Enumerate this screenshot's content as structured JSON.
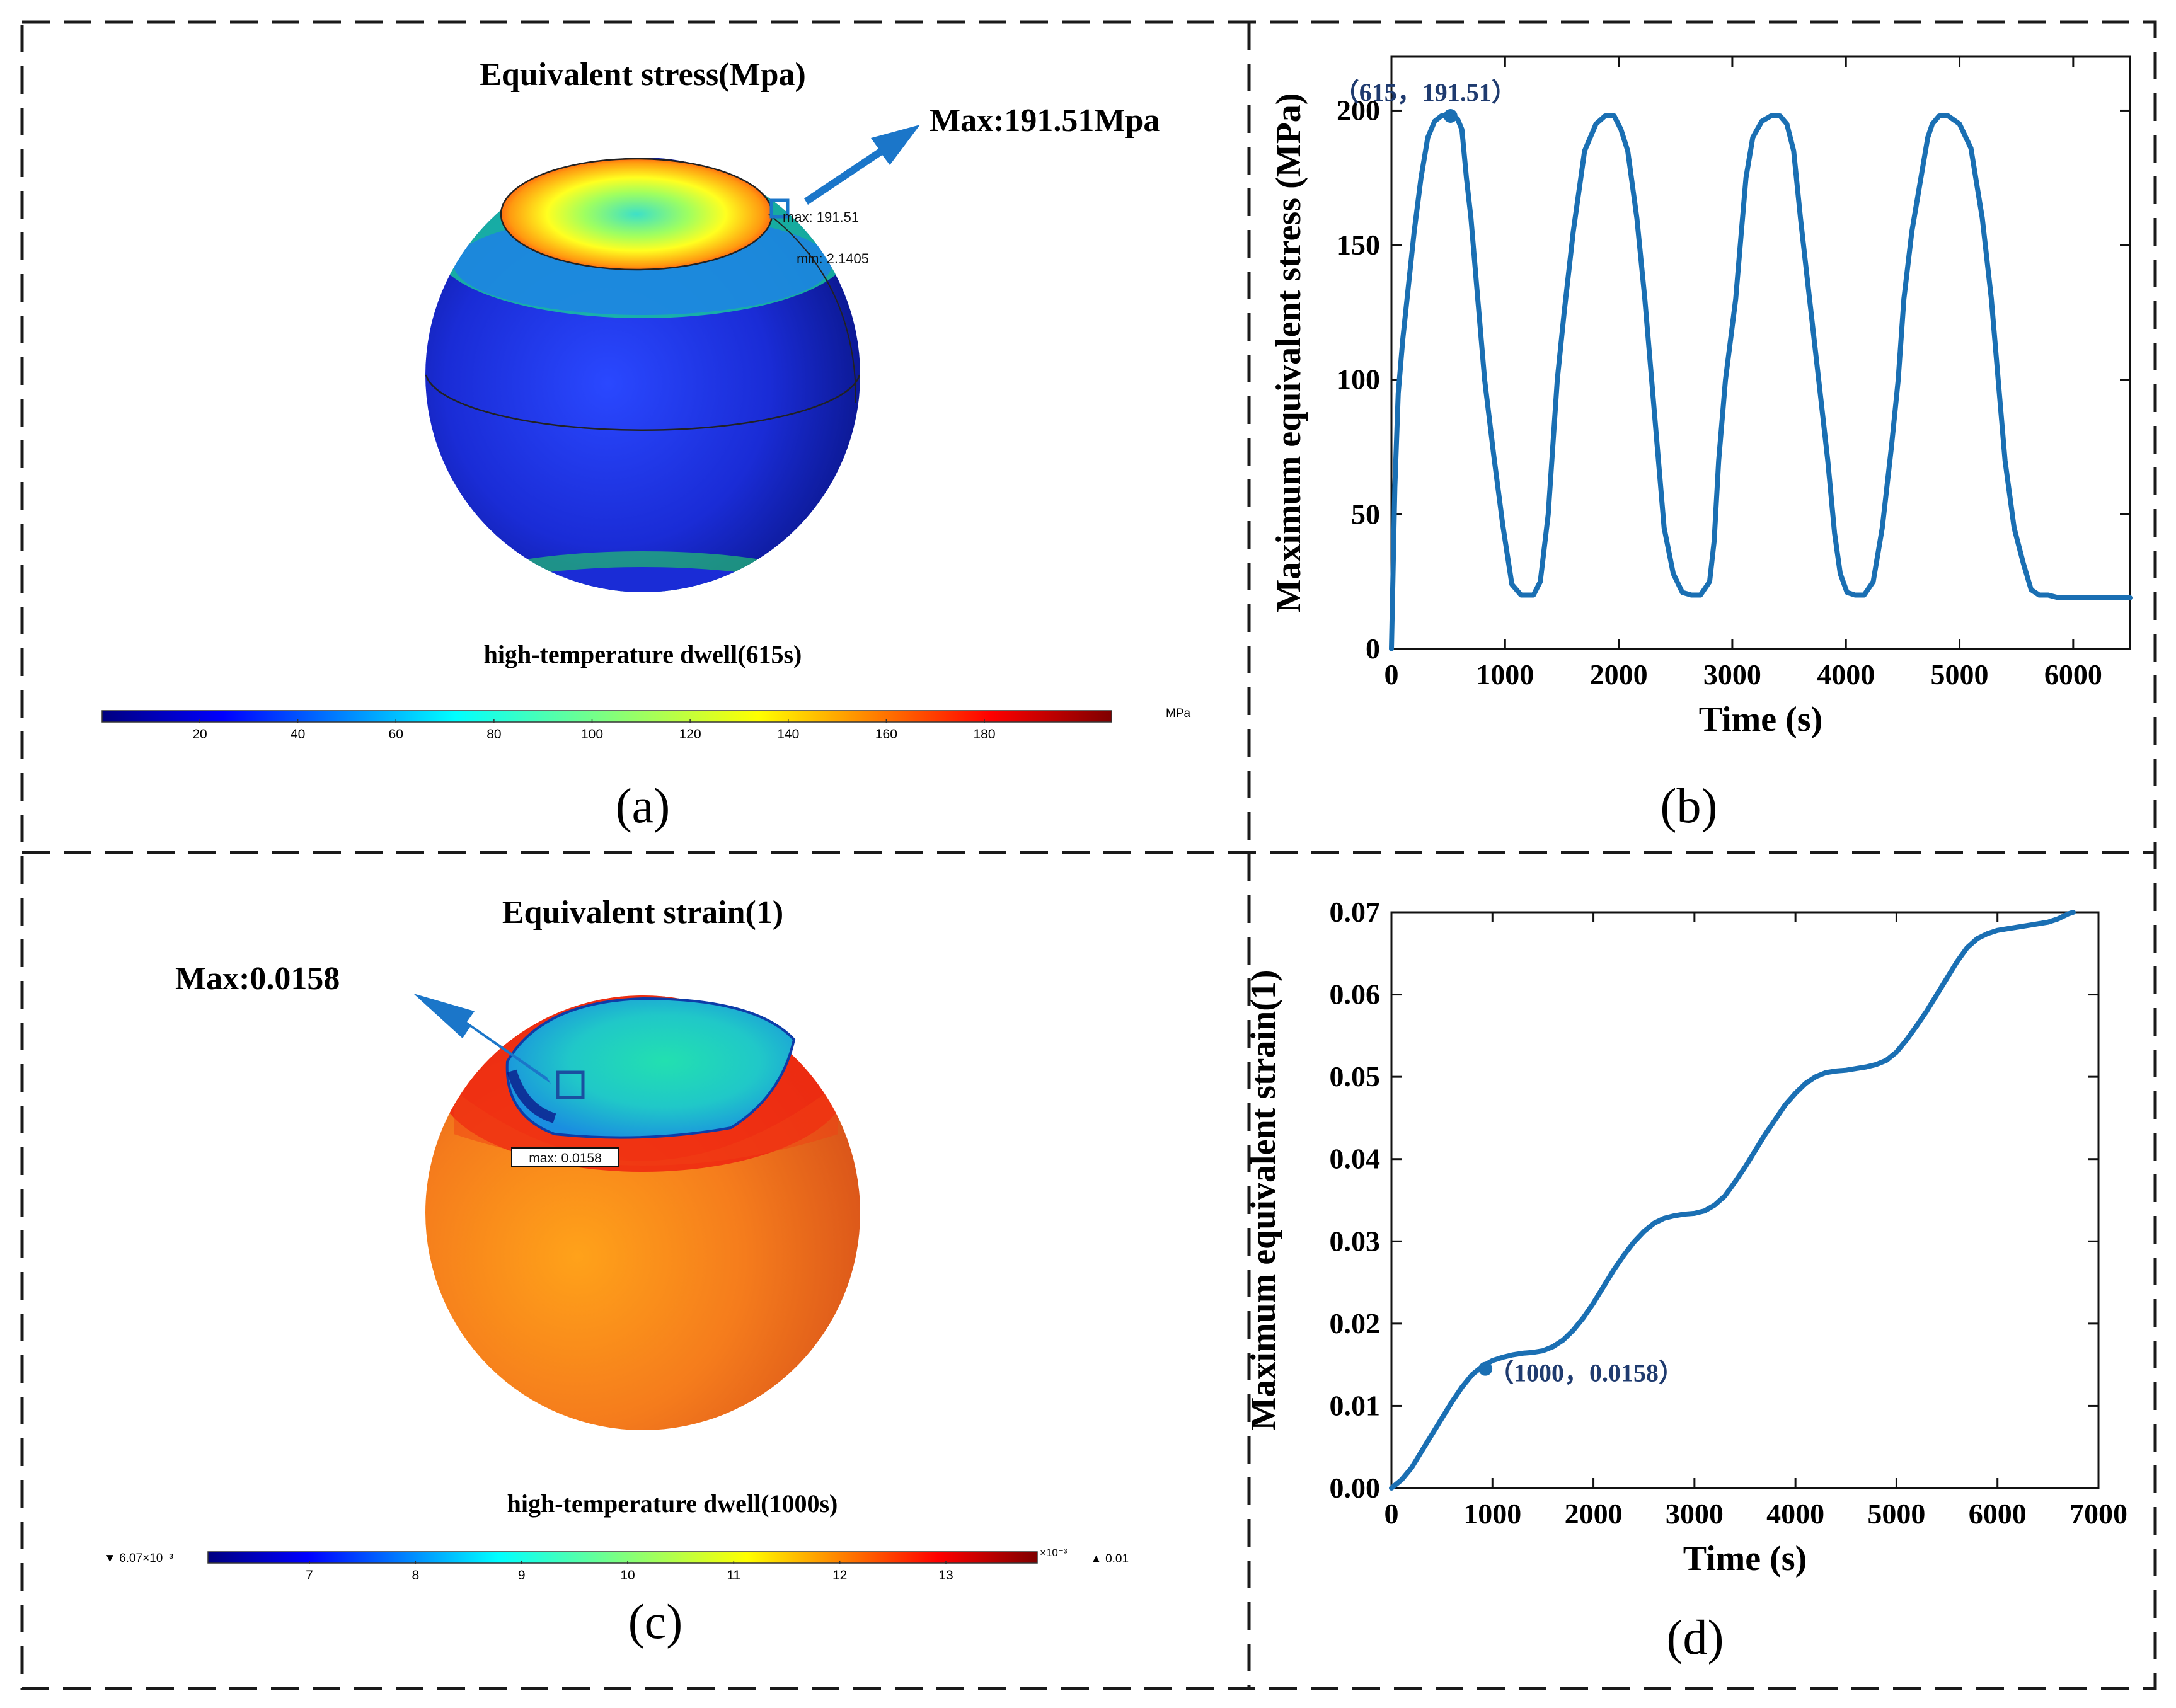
{
  "colors": {
    "line": "#1a6fb3",
    "annot": "#1f3b6f",
    "arrow": "#1b76c9",
    "sphere_blue": "#1c2fd8",
    "sphere_orange": "#f2751a"
  },
  "panel_a": {
    "title": "Equivalent stress(Mpa)",
    "max_callout": "Max:191.51Mpa",
    "max_tag": "max: 191.51",
    "min_tag": "min: 2.1405",
    "subtitle": "high-temperature dwell(615s)",
    "unit": "MPa",
    "colorbar_ticks": [
      "20",
      "40",
      "60",
      "80",
      "100",
      "120",
      "140",
      "160",
      "180"
    ],
    "label": "(a)"
  },
  "panel_c": {
    "title": "Equivalent strain(1)",
    "max_callout": "Max:0.0158",
    "max_tag": "max: 0.0158",
    "subtitle": "high-temperature dwell(1000s)",
    "colorbar_min": "▼ 6.07×10⁻³",
    "colorbar_scale": "×10⁻³",
    "colorbar_max": "▲ 0.01",
    "colorbar_ticks": [
      "7",
      "8",
      "9",
      "10",
      "11",
      "12",
      "13"
    ],
    "label": "(c)"
  },
  "panel_b": {
    "label": "(b)"
  },
  "panel_d": {
    "label": "(d)"
  },
  "chart_data": [
    {
      "type": "line",
      "xlabel": "Time (s)",
      "ylabel": "Maximum equivalent stress (MPa)",
      "xlim": [
        0,
        6500
      ],
      "ylim": [
        0,
        220
      ],
      "xticks": [
        0,
        1000,
        2000,
        3000,
        4000,
        5000,
        6000
      ],
      "yticks": [
        0,
        50,
        100,
        150,
        200
      ],
      "annotation": {
        "x": 520,
        "y": 198,
        "text": "（615，191.51）"
      },
      "series": [
        {
          "name": "Maximum equivalent stress",
          "x": [
            0,
            30,
            60,
            100,
            150,
            200,
            260,
            320,
            380,
            440,
            520,
            580,
            620,
            660,
            700,
            760,
            820,
            900,
            980,
            1060,
            1140,
            1190,
            1250,
            1310,
            1380,
            1420,
            1460,
            1520,
            1600,
            1700,
            1800,
            1880,
            1960,
            2020,
            2080,
            2160,
            2230,
            2290,
            2340,
            2400,
            2480,
            2560,
            2640,
            2720,
            2800,
            2840,
            2880,
            2940,
            3030,
            3080,
            3120,
            3180,
            3260,
            3340,
            3420,
            3480,
            3540,
            3600,
            3680,
            3760,
            3840,
            3900,
            3950,
            4010,
            4080,
            4160,
            4240,
            4320,
            4400,
            4460,
            4510,
            4580,
            4660,
            4720,
            4760,
            4820,
            4900,
            5000,
            5100,
            5200,
            5280,
            5340,
            5400,
            5480,
            5560,
            5630,
            5700,
            5780,
            5870,
            5960,
            6040,
            6100,
            6150,
            6220,
            6300,
            6400,
            6500
          ],
          "y": [
            0,
            60,
            95,
            115,
            135,
            155,
            175,
            190,
            196,
            198,
            198,
            197,
            193,
            175,
            160,
            130,
            100,
            72,
            46,
            24,
            20,
            20,
            20,
            25,
            50,
            75,
            100,
            125,
            155,
            185,
            195,
            198,
            198,
            193,
            185,
            160,
            130,
            100,
            75,
            45,
            28,
            21,
            20,
            20,
            25,
            40,
            70,
            100,
            130,
            155,
            175,
            190,
            196,
            198,
            198,
            195,
            185,
            160,
            130,
            100,
            70,
            43,
            28,
            21,
            20,
            20,
            25,
            45,
            75,
            100,
            130,
            155,
            175,
            190,
            195,
            198,
            198,
            195,
            186,
            160,
            130,
            100,
            70,
            45,
            32,
            22,
            20,
            20,
            19,
            19,
            19,
            19,
            19,
            19,
            19,
            19,
            19
          ]
        }
      ]
    },
    {
      "type": "line",
      "xlabel": "Time (s)",
      "ylabel": "Maximum equivalent strain(1)",
      "xlim": [
        0,
        7000
      ],
      "ylim": [
        0,
        0.07
      ],
      "xticks": [
        0,
        1000,
        2000,
        3000,
        4000,
        5000,
        6000,
        7000
      ],
      "yticks": [
        "0.00",
        "0.01",
        "0.02",
        "0.03",
        "0.04",
        "0.05",
        "0.06",
        "0.07"
      ],
      "annotation": {
        "x": 930,
        "y": 0.0145,
        "text": "（1000，0.0158）"
      },
      "series": [
        {
          "name": "Maximum equivalent strain",
          "x": [
            0,
            100,
            200,
            300,
            400,
            500,
            600,
            700,
            800,
            900,
            1000,
            1100,
            1200,
            1300,
            1400,
            1500,
            1600,
            1700,
            1800,
            1900,
            2000,
            2100,
            2200,
            2300,
            2400,
            2500,
            2600,
            2700,
            2800,
            2900,
            3000,
            3100,
            3200,
            3300,
            3400,
            3500,
            3600,
            3700,
            3800,
            3900,
            4000,
            4100,
            4200,
            4300,
            4400,
            4500,
            4600,
            4700,
            4800,
            4900,
            5000,
            5100,
            5200,
            5300,
            5400,
            5500,
            5600,
            5700,
            5800,
            5900,
            6000,
            6100,
            6200,
            6300,
            6400,
            6500,
            6600,
            6700,
            6750
          ],
          "y": [
            0,
            0.001,
            0.0025,
            0.0045,
            0.0065,
            0.0085,
            0.0105,
            0.0123,
            0.0138,
            0.0148,
            0.0155,
            0.0159,
            0.0162,
            0.0164,
            0.0165,
            0.0167,
            0.0172,
            0.018,
            0.0192,
            0.0207,
            0.0225,
            0.0245,
            0.0265,
            0.0283,
            0.0299,
            0.0312,
            0.0322,
            0.0328,
            0.0331,
            0.0333,
            0.0334,
            0.0337,
            0.0344,
            0.0355,
            0.0372,
            0.039,
            0.041,
            0.043,
            0.0448,
            0.0466,
            0.048,
            0.0492,
            0.05,
            0.0505,
            0.0507,
            0.0508,
            0.051,
            0.0512,
            0.0515,
            0.052,
            0.053,
            0.0545,
            0.0562,
            0.058,
            0.06,
            0.062,
            0.064,
            0.0657,
            0.0668,
            0.0674,
            0.0678,
            0.068,
            0.0682,
            0.0684,
            0.0686,
            0.0688,
            0.0692,
            0.0698,
            0.07
          ]
        }
      ]
    }
  ]
}
